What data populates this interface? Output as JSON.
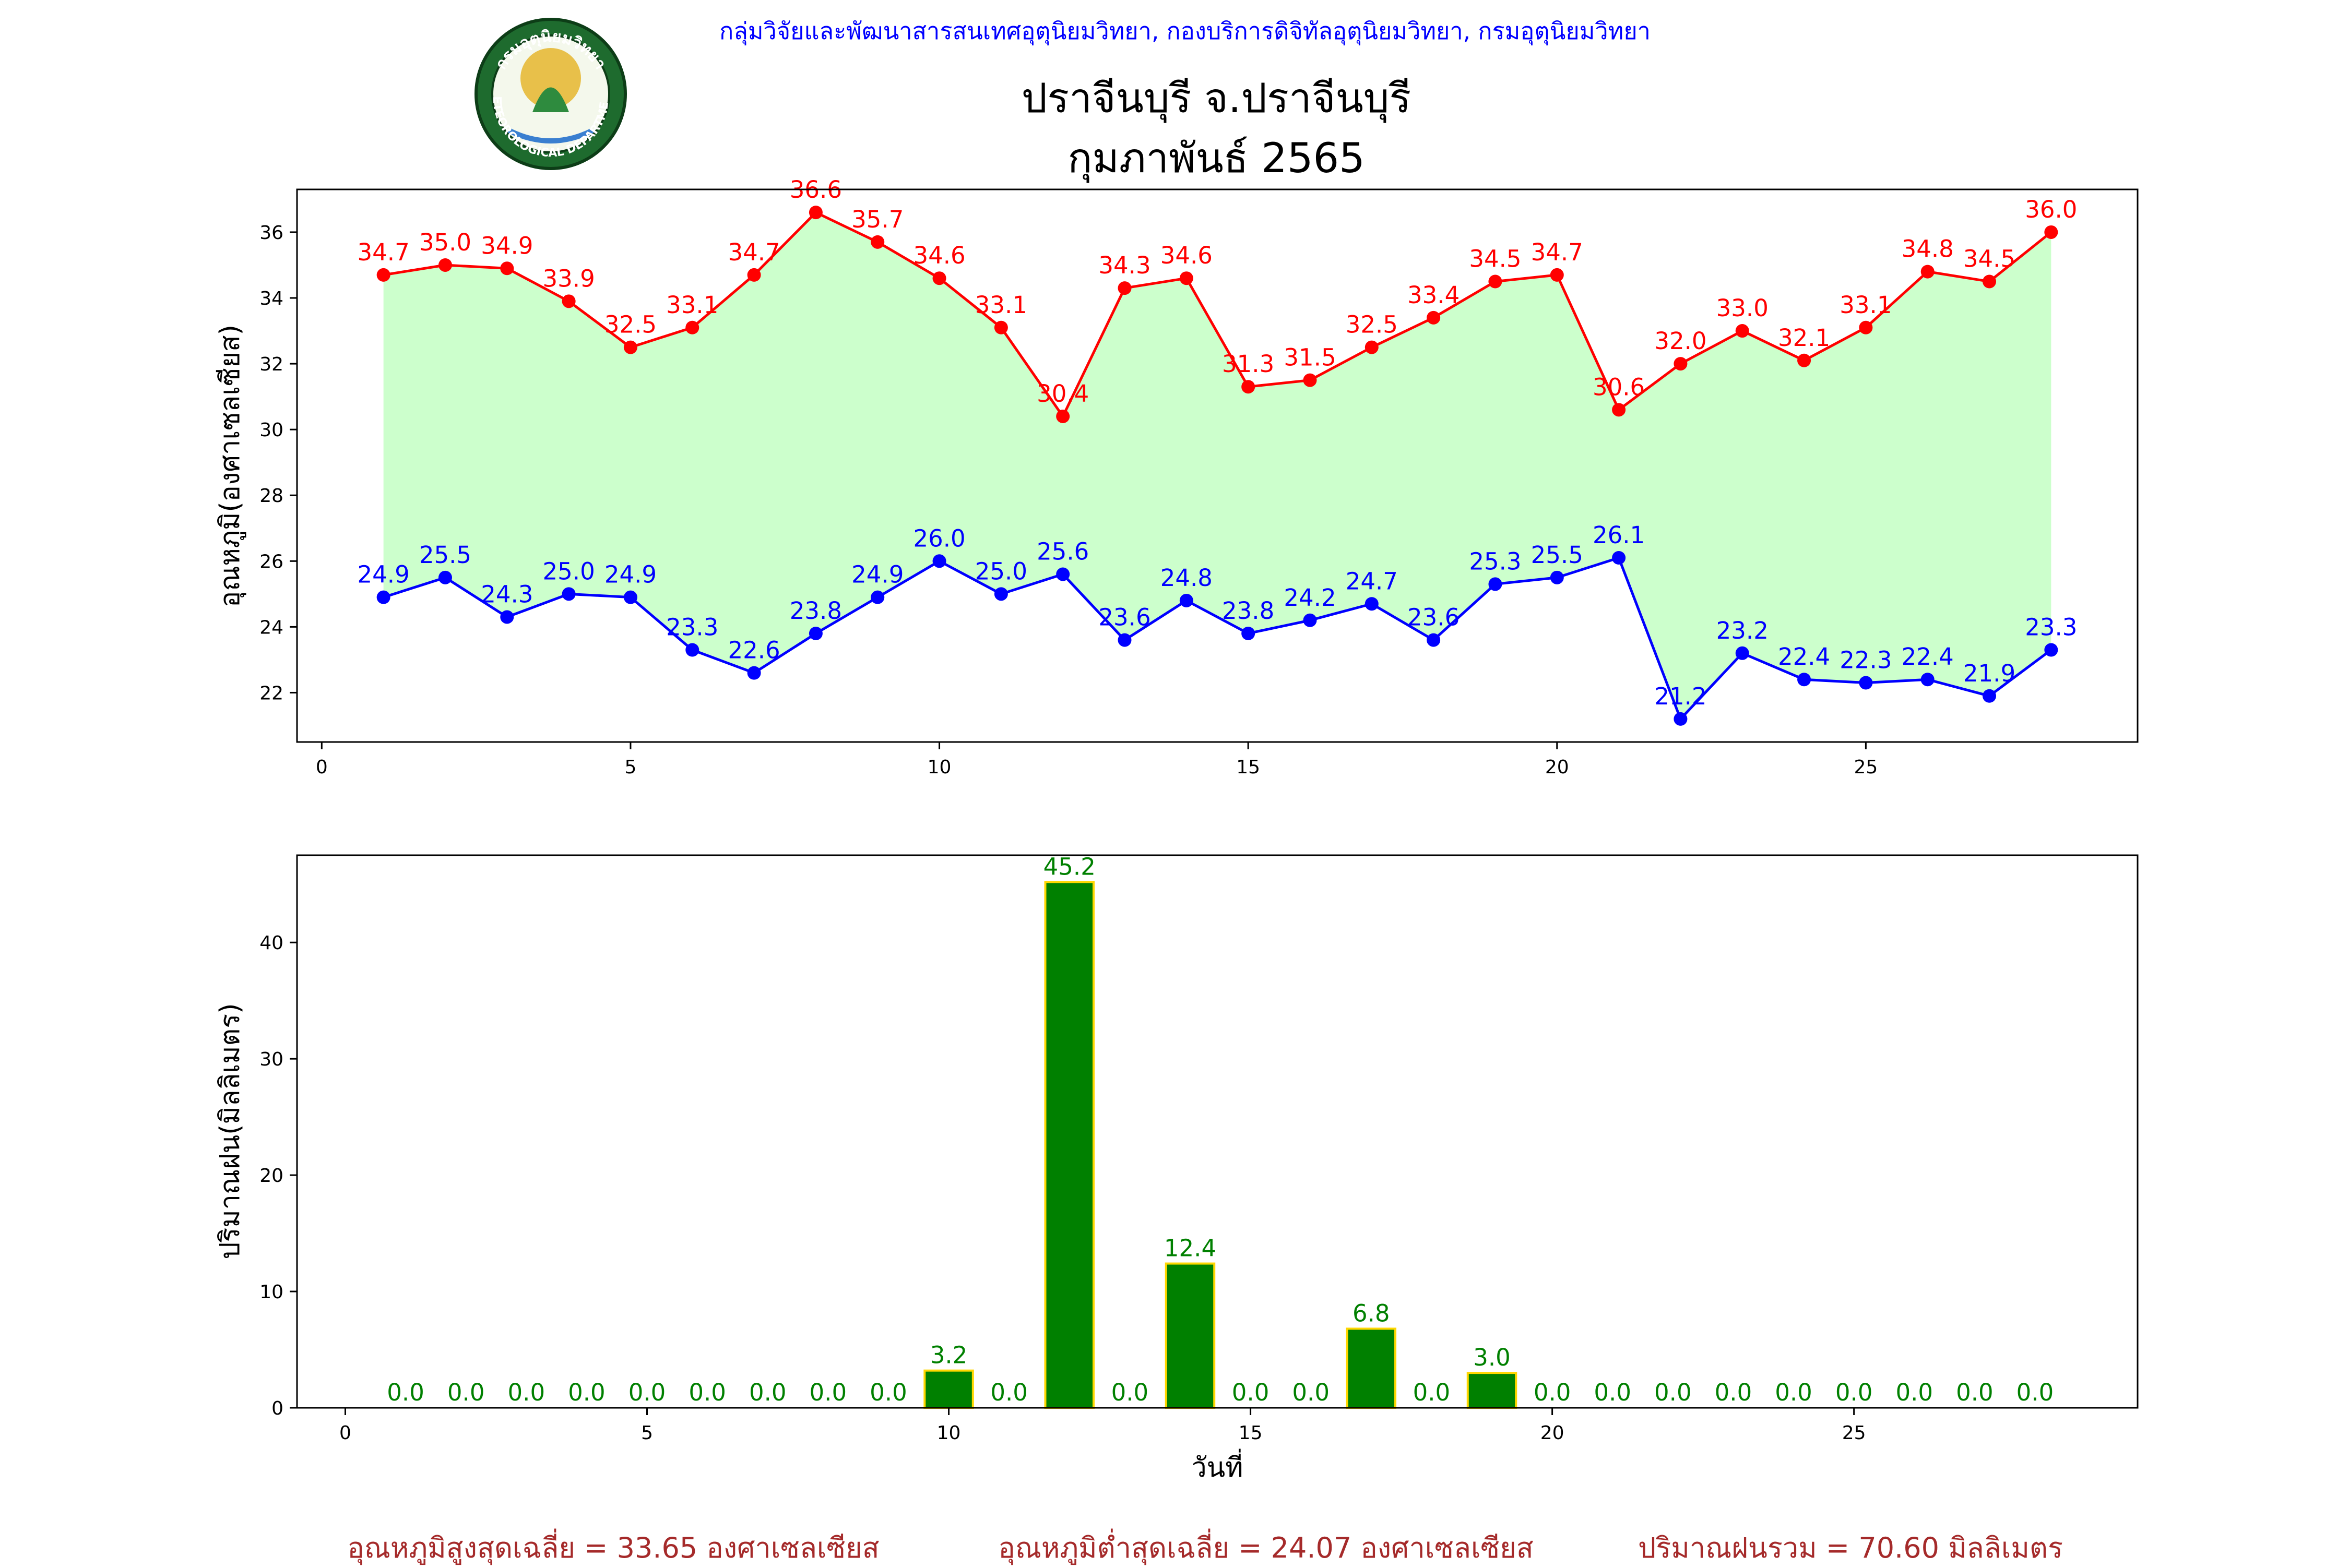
{
  "header": {
    "agency": "กลุ่มวิจัยและพัฒนาสารสนเทศอุตุนิยมวิทยา, กองบริการดิจิทัลอุตุนิยมวิทยา, กรมอุตุนิยมวิทยา",
    "title": "ปราจีนบุรี จ.ปราจีนบุรี",
    "subtitle": "กุมภาพันธ์ 2565",
    "logo": {
      "icon": "meteorological-department-seal",
      "top_text": "กรมอุตุนิยมวิทยา",
      "bottom_text": "METEOROLOGICAL DEPARTMENT"
    }
  },
  "colors": {
    "max_temp": "#ff0000",
    "min_temp": "#0000ff",
    "fill": "#ccffcc",
    "rain_bar": "#008000",
    "rain_edge": "#ffd700",
    "rain_label": "#008000",
    "header_blue": "#0000ff",
    "summary": "#a52a2a"
  },
  "chart_data": [
    {
      "type": "line",
      "ylabel": "อุณหภูมิ(องศาเซลเซียส)",
      "xlabel": "",
      "xlim": [
        -0.4,
        29.4
      ],
      "ylim": [
        20.5,
        37.3
      ],
      "xticks": [
        "0",
        "5",
        "10",
        "15",
        "20",
        "25"
      ],
      "yticks": [
        "22",
        "24",
        "26",
        "28",
        "30",
        "32",
        "34",
        "36"
      ],
      "fill_between": true,
      "x": [
        1,
        2,
        3,
        4,
        5,
        6,
        7,
        8,
        9,
        10,
        11,
        12,
        13,
        14,
        15,
        16,
        17,
        18,
        19,
        20,
        21,
        22,
        23,
        24,
        25,
        26,
        27,
        28
      ],
      "series": [
        {
          "role": "max",
          "values": [
            34.7,
            35.0,
            34.9,
            33.9,
            32.5,
            33.1,
            34.7,
            36.6,
            35.7,
            34.6,
            33.1,
            30.4,
            34.3,
            34.6,
            31.3,
            31.5,
            32.5,
            33.4,
            34.5,
            34.7,
            30.6,
            32.0,
            33.0,
            32.1,
            33.1,
            34.8,
            34.5,
            36.0
          ],
          "labels": [
            "34.7",
            "35.0",
            "34.9",
            "33.9",
            "32.5",
            "33.1",
            "34.7",
            "36.6",
            "35.7",
            "34.6",
            "33.1",
            "30.4",
            "34.3",
            "34.6",
            "31.3",
            "31.5",
            "32.5",
            "33.4",
            "34.5",
            "34.7",
            "30.6",
            "32.0",
            "33.0",
            "32.1",
            "33.1",
            "34.8",
            "34.5",
            "36.0"
          ]
        },
        {
          "role": "min",
          "values": [
            24.9,
            25.5,
            24.3,
            25.0,
            24.9,
            23.3,
            22.6,
            23.8,
            24.9,
            26.0,
            25.0,
            25.6,
            23.6,
            24.8,
            23.8,
            24.2,
            24.7,
            23.6,
            25.3,
            25.5,
            26.1,
            21.2,
            23.2,
            22.4,
            22.3,
            22.4,
            21.9,
            23.3
          ],
          "labels": [
            "24.9",
            "25.5",
            "24.3",
            "25.0",
            "24.9",
            "23.3",
            "22.6",
            "23.8",
            "24.9",
            "26.0",
            "25.0",
            "25.6",
            "23.6",
            "24.8",
            "23.8",
            "24.2",
            "24.7",
            "23.6",
            "25.3",
            "25.5",
            "26.1",
            "21.2",
            "23.2",
            "22.4",
            "22.3",
            "22.4",
            "21.9",
            "23.3"
          ]
        }
      ]
    },
    {
      "type": "bar",
      "ylabel": "ปริมาณฝน(มิลลิเมตร)",
      "xlabel": "วันที่",
      "xlim": [
        -0.8,
        29.7
      ],
      "ylim": [
        0,
        47.5
      ],
      "xticks": [
        "0",
        "5",
        "10",
        "15",
        "20",
        "25"
      ],
      "yticks": [
        "0",
        "10",
        "20",
        "30",
        "40"
      ],
      "x": [
        1,
        2,
        3,
        4,
        5,
        6,
        7,
        8,
        9,
        10,
        11,
        12,
        13,
        14,
        15,
        16,
        17,
        18,
        19,
        20,
        21,
        22,
        23,
        24,
        25,
        26,
        27,
        28
      ],
      "values": [
        0.0,
        0.0,
        0.0,
        0.0,
        0.0,
        0.0,
        0.0,
        0.0,
        0.0,
        3.2,
        0.0,
        45.2,
        0.0,
        12.4,
        0.0,
        0.0,
        6.8,
        0.0,
        3.0,
        0.0,
        0.0,
        0.0,
        0.0,
        0.0,
        0.0,
        0.0,
        0.0,
        0.0
      ],
      "labels": [
        "0.0",
        "0.0",
        "0.0",
        "0.0",
        "0.0",
        "0.0",
        "0.0",
        "0.0",
        "0.0",
        "3.2",
        "0.0",
        "45.2",
        "0.0",
        "12.4",
        "0.0",
        "0.0",
        "6.8",
        "0.0",
        "3.0",
        "0.0",
        "0.0",
        "0.0",
        "0.0",
        "0.0",
        "0.0",
        "0.0",
        "0.0",
        "0.0"
      ]
    }
  ],
  "summary": {
    "avg_max": "อุณหภูมิสูงสุดเฉลี่ย = 33.65 องศาเซลเซียส",
    "avg_min": "อุณหภูมิต่ำสุดเฉลี่ย = 24.07 องศาเซลเซียส",
    "total_rain": "ปริมาณฝนรวม = 70.60 มิลลิเมตร"
  }
}
